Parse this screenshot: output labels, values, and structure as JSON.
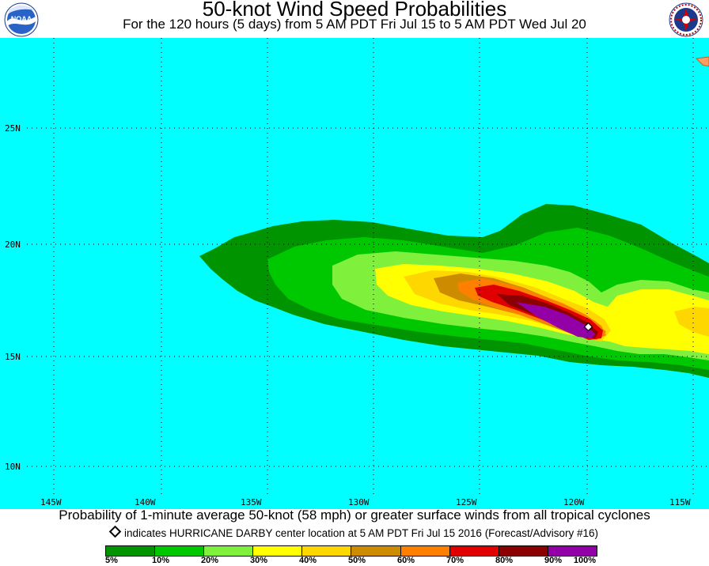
{
  "header": {
    "title": "50-knot Wind Speed Probabilities",
    "subtitle": "For the 120 hours (5 days) from 5 AM PDT Fri Jul 15 to 5 AM PDT Wed Jul 20",
    "left_logo": {
      "icon": "noaa-logo-icon",
      "text": "NOAA"
    },
    "right_logo": {
      "icon": "nws-logo-icon",
      "text": "NATIONAL WEATHER SERVICE"
    }
  },
  "map": {
    "ocean_color": "#00ffff",
    "land_color": "#ff9e62",
    "lat_labels": [
      "25N",
      "20N",
      "15N",
      "10N"
    ],
    "lon_labels": [
      "145W",
      "140W",
      "135W",
      "130W",
      "125W",
      "120W",
      "115W"
    ],
    "storm": {
      "name": "HURRICANE DARBY",
      "marker_icon": "storm-center-diamond-icon",
      "lat": 16.3,
      "lon": -119.9
    }
  },
  "footer": {
    "description": "Probability of 1-minute average 50-knot (58 mph) or greater surface winds from all tropical cyclones",
    "center_note": "indicates HURRICANE DARBY center location at 5 AM PDT Fri Jul 15 2016 (Forecast/Advisory #16)"
  },
  "legend": {
    "colors": [
      "#009400",
      "#00c800",
      "#7ff03c",
      "#ffff00",
      "#ffd700",
      "#cd8c00",
      "#ff8000",
      "#e00000",
      "#8b0000",
      "#9400a8"
    ],
    "labels": [
      "5%",
      "10%",
      "20%",
      "30%",
      "40%",
      "50%",
      "60%",
      "70%",
      "80%",
      "90%",
      "100%"
    ]
  }
}
